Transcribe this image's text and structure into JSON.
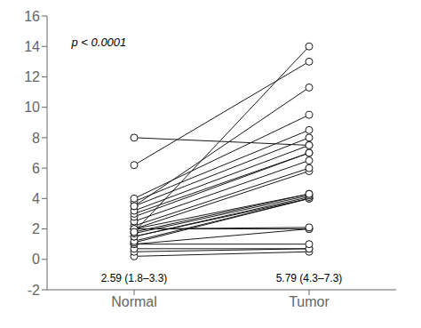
{
  "chart_data": {
    "type": "line",
    "categories": [
      "Normal",
      "Tumor"
    ],
    "color": "#1a1a1a",
    "marker": "circle",
    "grid": false,
    "ylim": [
      -2,
      16
    ],
    "yticks": [
      -2,
      0,
      2,
      4,
      6,
      8,
      10,
      12,
      14,
      16
    ],
    "series": [
      {
        "values": [
          0.2,
          0.5
        ]
      },
      {
        "values": [
          0.5,
          0.7
        ]
      },
      {
        "values": [
          0.7,
          0.7
        ]
      },
      {
        "values": [
          1.0,
          1.0
        ]
      },
      {
        "values": [
          1.0,
          2.0
        ]
      },
      {
        "values": [
          1.1,
          4.0
        ]
      },
      {
        "values": [
          1.2,
          4.0
        ]
      },
      {
        "values": [
          1.5,
          4.0
        ]
      },
      {
        "values": [
          1.5,
          4.1
        ]
      },
      {
        "values": [
          1.7,
          4.2
        ]
      },
      {
        "values": [
          1.8,
          4.3
        ]
      },
      {
        "values": [
          2.0,
          4.3
        ]
      },
      {
        "values": [
          2.0,
          5.8
        ]
      },
      {
        "values": [
          2.2,
          6.0
        ]
      },
      {
        "values": [
          2.5,
          6.5
        ]
      },
      {
        "values": [
          2.8,
          7.0
        ]
      },
      {
        "values": [
          3.0,
          7.0
        ]
      },
      {
        "values": [
          3.2,
          7.5
        ]
      },
      {
        "values": [
          3.5,
          8.0
        ]
      },
      {
        "values": [
          3.8,
          8.5
        ]
      },
      {
        "values": [
          4.0,
          9.5
        ]
      },
      {
        "values": [
          6.2,
          13.0
        ]
      },
      {
        "values": [
          8.0,
          7.5
        ]
      },
      {
        "values": [
          3.5,
          11.3
        ]
      },
      {
        "values": [
          2.0,
          2.0
        ]
      },
      {
        "values": [
          2.0,
          2.1
        ]
      },
      {
        "values": [
          1.8,
          14.0
        ]
      }
    ],
    "annotations": [
      {
        "text": "2.59 (1.8–3.3)",
        "category": "Normal"
      },
      {
        "text": "5.79 (4.3–7.3)",
        "category": "Tumor"
      },
      {
        "text": "p < 0.0001"
      }
    ]
  }
}
